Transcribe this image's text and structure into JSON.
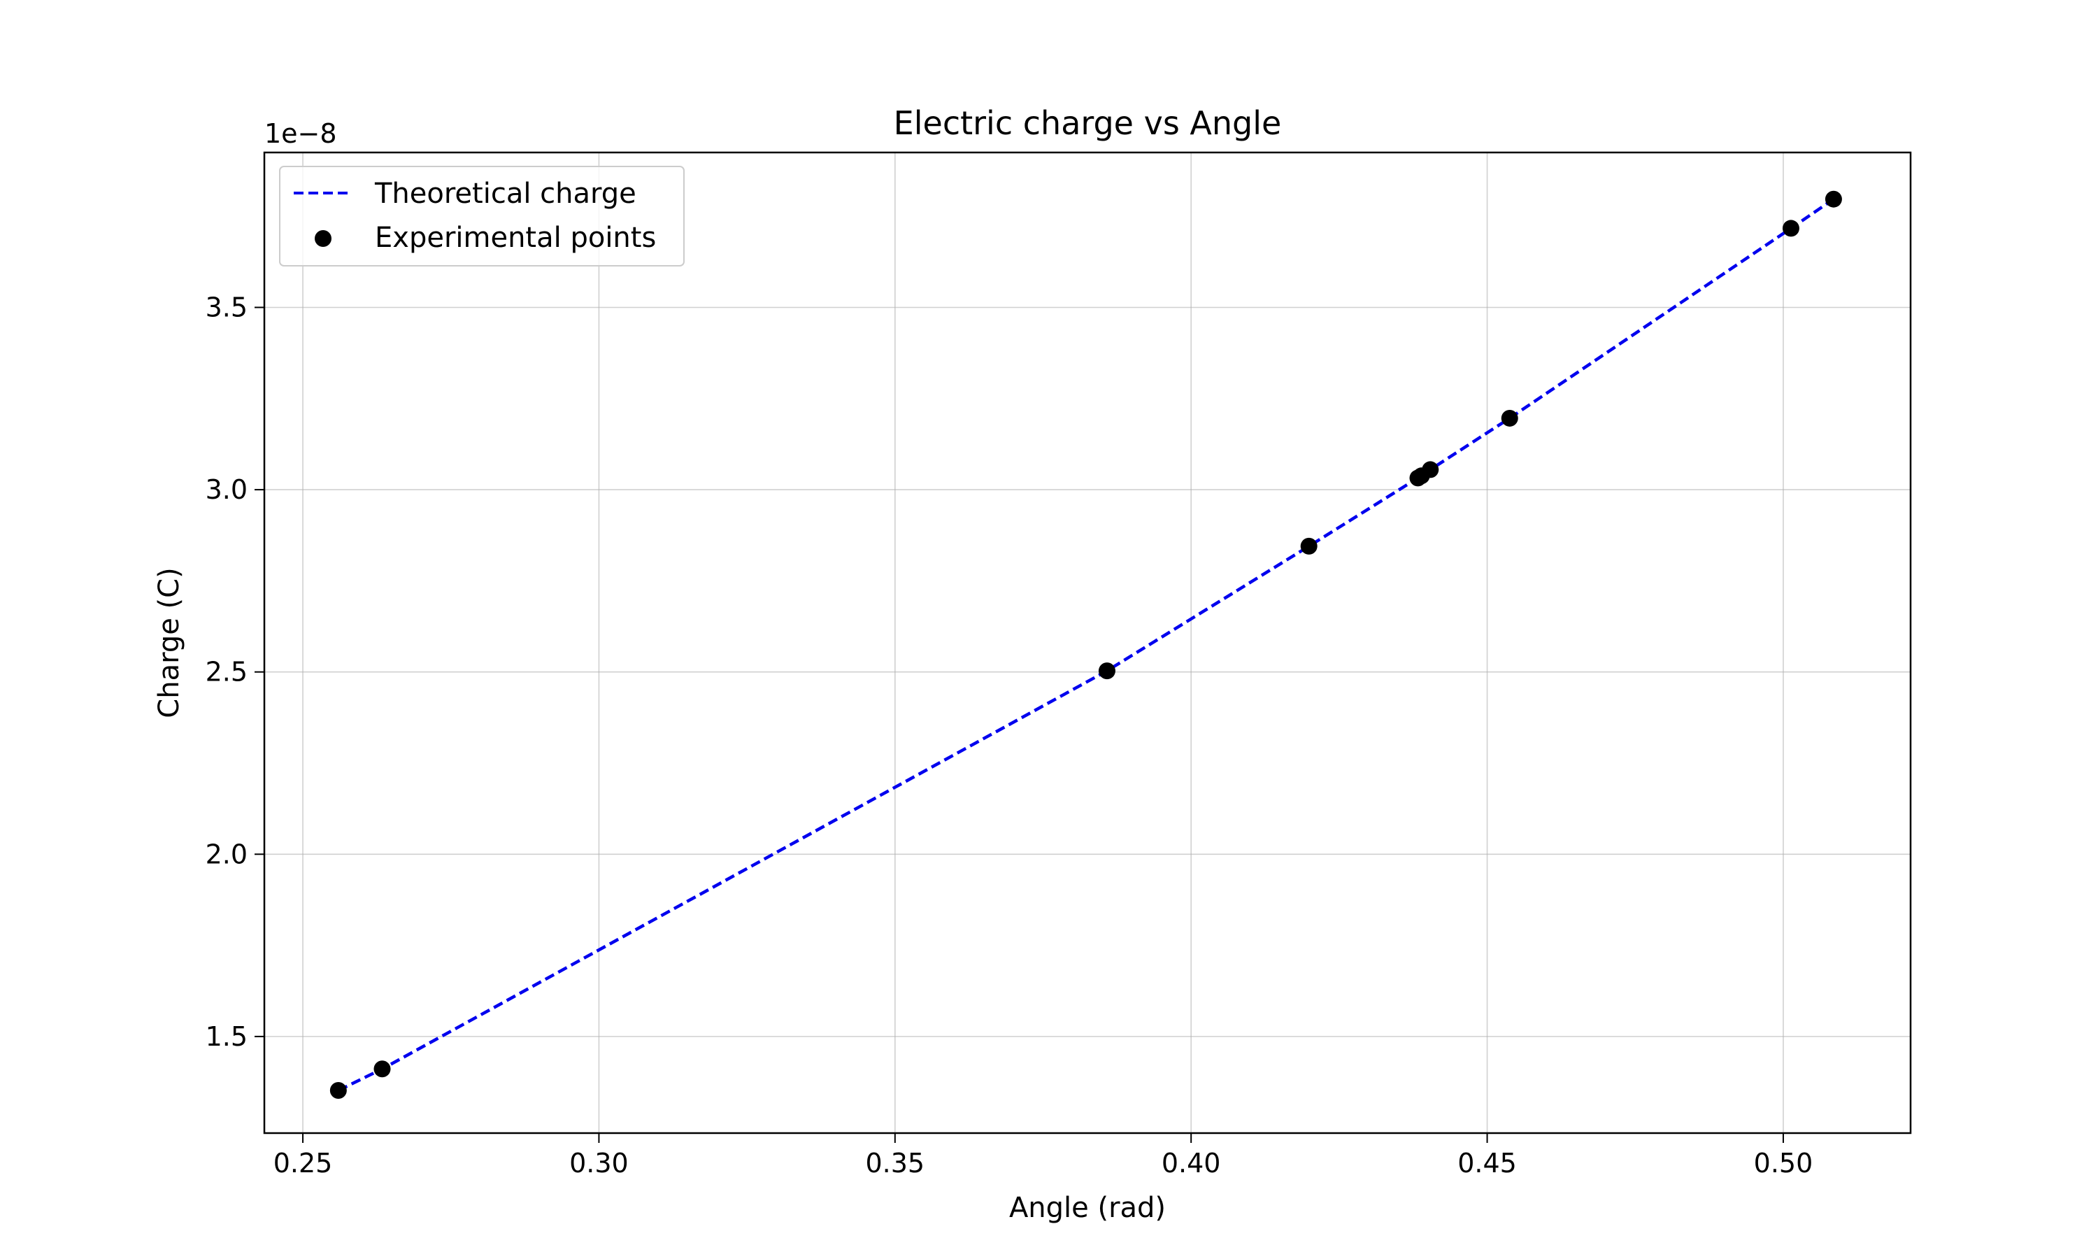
{
  "chart_data": {
    "type": "scatter",
    "title": "Electric charge vs Angle",
    "xlabel": "Angle (rad)",
    "ylabel": "Charge (C)",
    "y_offset_label": "1e−8",
    "xlim": [
      0.2435,
      0.5215
    ],
    "ylim": [
      1.235,
      3.925
    ],
    "x_ticks": [
      0.25,
      0.3,
      0.35,
      0.4,
      0.45,
      0.5
    ],
    "x_tick_labels": [
      "0.25",
      "0.30",
      "0.35",
      "0.40",
      "0.45",
      "0.50"
    ],
    "y_ticks": [
      1.5,
      2.0,
      2.5,
      3.0,
      3.5
    ],
    "y_tick_labels": [
      "1.5",
      "2.0",
      "2.5",
      "3.0",
      "3.5"
    ],
    "grid": true,
    "legend_position": "top-left",
    "series": [
      {
        "name": "Theoretical charge",
        "type": "line",
        "style": "dashed",
        "color": "#0000ee",
        "x": [
          0.256,
          0.2634,
          0.3858,
          0.4199,
          0.4383,
          0.4389,
          0.4404,
          0.4538,
          0.5013,
          0.5085
        ],
        "y": [
          1.352,
          1.411,
          2.503,
          2.845,
          3.032,
          3.038,
          3.055,
          3.196,
          3.717,
          3.797
        ]
      },
      {
        "name": "Experimental points",
        "type": "scatter",
        "color": "#000000",
        "x": [
          0.256,
          0.2634,
          0.3858,
          0.4199,
          0.4383,
          0.4389,
          0.4404,
          0.4538,
          0.5013,
          0.5085
        ],
        "y": [
          1.352,
          1.411,
          2.503,
          2.845,
          3.032,
          3.038,
          3.055,
          3.196,
          3.717,
          3.797
        ]
      }
    ]
  }
}
